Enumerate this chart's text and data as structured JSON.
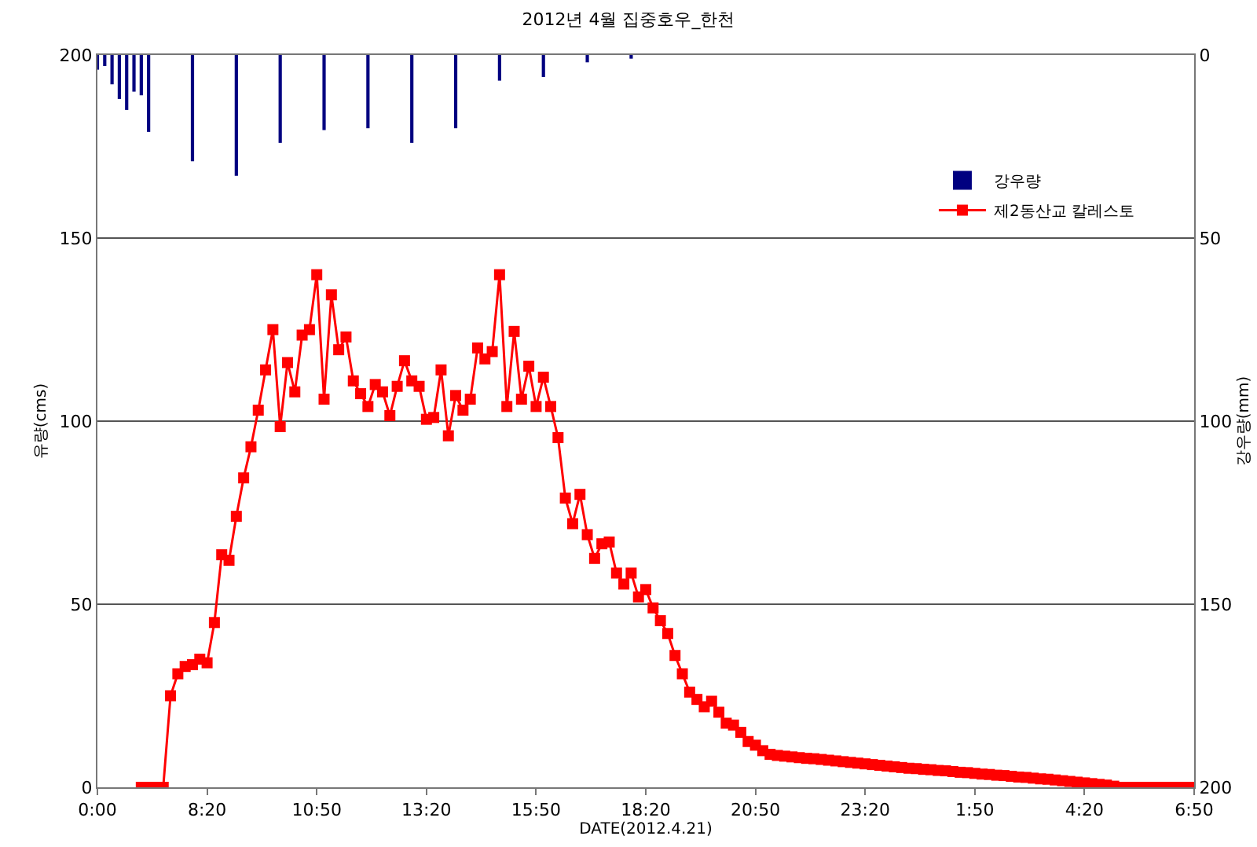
{
  "chart_data": {
    "type": "line",
    "title": "2012년 4월 집중호우_한천",
    "xlabel": "DATE(2012.4.21)",
    "ylabel": "유량(cms)",
    "y2label": "강우량(mm)",
    "xlim": [
      "2012-04-21T05:50",
      "2012-04-22T06:50"
    ],
    "xticks": [
      {
        "value": "2012-04-21T05:50",
        "label": "0:00"
      },
      {
        "value": "2012-04-21T08:20",
        "label": "8:20"
      },
      {
        "value": "2012-04-21T10:50",
        "label": "10:50"
      },
      {
        "value": "2012-04-21T13:20",
        "label": "13:20"
      },
      {
        "value": "2012-04-21T15:50",
        "label": "15:50"
      },
      {
        "value": "2012-04-21T18:20",
        "label": "18:20"
      },
      {
        "value": "2012-04-21T20:50",
        "label": "20:50"
      },
      {
        "value": "2012-04-21T23:20",
        "label": "23:20"
      },
      {
        "value": "2012-04-22T01:50",
        "label": "1:50"
      },
      {
        "value": "2012-04-22T04:20",
        "label": "4:20"
      },
      {
        "value": "2012-04-22T06:50",
        "label": "6:50"
      }
    ],
    "ylim": [
      0,
      200
    ],
    "yticks": [
      0,
      50,
      100,
      150,
      200
    ],
    "y2lim": [
      200,
      0
    ],
    "y2ticks": [
      0,
      50,
      100,
      150,
      200
    ],
    "grid": "y",
    "legend": "top right",
    "marker": "square",
    "line_style": "solid",
    "series": [
      {
        "name": "강우량",
        "type": "bar",
        "axis": "y2",
        "color": "#000080",
        "x": [
          "2012-04-21T05:50",
          "2012-04-21T06:00",
          "2012-04-21T06:10",
          "2012-04-21T06:20",
          "2012-04-21T06:30",
          "2012-04-21T06:40",
          "2012-04-21T06:50",
          "2012-04-21T07:00",
          "2012-04-21T08:00",
          "2012-04-21T09:00",
          "2012-04-21T10:00",
          "2012-04-21T11:00",
          "2012-04-21T12:00",
          "2012-04-21T13:00",
          "2012-04-21T14:00",
          "2012-04-21T15:00",
          "2012-04-21T16:00",
          "2012-04-21T17:00",
          "2012-04-21T18:00"
        ],
        "values": [
          4,
          3,
          8,
          12,
          15,
          10,
          11,
          21,
          29,
          33,
          24,
          20.5,
          20,
          24,
          20,
          7,
          6,
          2,
          1
        ]
      },
      {
        "name": "제2동산교 칼레스토",
        "color": "#ff0000",
        "x": [
          "2012-04-21T06:50",
          "2012-04-21T07:00",
          "2012-04-21T07:10",
          "2012-04-21T07:20",
          "2012-04-21T07:30",
          "2012-04-21T07:40",
          "2012-04-21T07:50",
          "2012-04-21T08:00",
          "2012-04-21T08:10",
          "2012-04-21T08:20",
          "2012-04-21T08:30",
          "2012-04-21T08:40",
          "2012-04-21T08:50",
          "2012-04-21T09:00",
          "2012-04-21T09:10",
          "2012-04-21T09:20",
          "2012-04-21T09:30",
          "2012-04-21T09:40",
          "2012-04-21T09:50",
          "2012-04-21T10:00",
          "2012-04-21T10:10",
          "2012-04-21T10:20",
          "2012-04-21T10:30",
          "2012-04-21T10:40",
          "2012-04-21T10:50",
          "2012-04-21T11:00",
          "2012-04-21T11:10",
          "2012-04-21T11:20",
          "2012-04-21T11:30",
          "2012-04-21T11:40",
          "2012-04-21T11:50",
          "2012-04-21T12:00",
          "2012-04-21T12:10",
          "2012-04-21T12:20",
          "2012-04-21T12:30",
          "2012-04-21T12:40",
          "2012-04-21T12:50",
          "2012-04-21T13:00",
          "2012-04-21T13:10",
          "2012-04-21T13:20",
          "2012-04-21T13:30",
          "2012-04-21T13:40",
          "2012-04-21T13:50",
          "2012-04-21T14:00",
          "2012-04-21T14:10",
          "2012-04-21T14:20",
          "2012-04-21T14:30",
          "2012-04-21T14:40",
          "2012-04-21T14:50",
          "2012-04-21T15:00",
          "2012-04-21T15:10",
          "2012-04-21T15:20",
          "2012-04-21T15:30",
          "2012-04-21T15:40",
          "2012-04-21T15:50",
          "2012-04-21T16:00",
          "2012-04-21T16:10",
          "2012-04-21T16:20",
          "2012-04-21T16:30",
          "2012-04-21T16:40",
          "2012-04-21T16:50",
          "2012-04-21T17:00",
          "2012-04-21T17:10",
          "2012-04-21T17:20",
          "2012-04-21T17:30",
          "2012-04-21T17:40",
          "2012-04-21T17:50",
          "2012-04-21T18:00",
          "2012-04-21T18:10",
          "2012-04-21T18:20",
          "2012-04-21T18:30",
          "2012-04-21T18:40",
          "2012-04-21T18:50",
          "2012-04-21T19:00",
          "2012-04-21T19:10",
          "2012-04-21T19:20",
          "2012-04-21T19:30",
          "2012-04-21T19:40",
          "2012-04-21T19:50",
          "2012-04-21T20:00",
          "2012-04-21T20:10",
          "2012-04-21T20:20",
          "2012-04-21T20:30",
          "2012-04-21T20:40",
          "2012-04-21T20:50",
          "2012-04-21T21:00",
          "2012-04-21T21:10",
          "2012-04-21T21:20",
          "2012-04-21T21:30",
          "2012-04-21T21:40",
          "2012-04-21T21:50",
          "2012-04-21T22:00",
          "2012-04-21T22:10",
          "2012-04-21T22:20",
          "2012-04-21T22:30",
          "2012-04-21T22:40",
          "2012-04-21T22:50",
          "2012-04-21T23:00",
          "2012-04-21T23:10",
          "2012-04-21T23:20",
          "2012-04-21T23:30",
          "2012-04-21T23:40",
          "2012-04-21T23:50",
          "2012-04-22T00:00",
          "2012-04-22T00:10",
          "2012-04-22T00:20",
          "2012-04-22T00:30",
          "2012-04-22T00:40",
          "2012-04-22T00:50",
          "2012-04-22T01:00",
          "2012-04-22T01:10",
          "2012-04-22T01:20",
          "2012-04-22T01:30",
          "2012-04-22T01:40",
          "2012-04-22T01:50",
          "2012-04-22T02:00",
          "2012-04-22T02:10",
          "2012-04-22T02:20",
          "2012-04-22T02:30",
          "2012-04-22T02:40",
          "2012-04-22T02:50",
          "2012-04-22T03:00",
          "2012-04-22T03:10",
          "2012-04-22T03:20",
          "2012-04-22T03:30",
          "2012-04-22T03:40",
          "2012-04-22T03:50",
          "2012-04-22T04:00",
          "2012-04-22T04:10",
          "2012-04-22T04:20",
          "2012-04-22T04:30",
          "2012-04-22T04:40",
          "2012-04-22T04:50",
          "2012-04-22T05:00",
          "2012-04-22T05:10",
          "2012-04-22T05:20",
          "2012-04-22T05:30",
          "2012-04-22T05:40",
          "2012-04-22T05:50",
          "2012-04-22T06:00",
          "2012-04-22T06:10",
          "2012-04-22T06:20",
          "2012-04-22T06:30",
          "2012-04-22T06:40",
          "2012-04-22T06:50"
        ],
        "values": [
          0,
          0,
          0,
          0,
          25,
          31,
          33,
          33.5,
          35,
          34,
          45,
          63.5,
          62,
          74,
          84.5,
          93,
          103,
          114,
          125,
          98.5,
          116,
          108,
          123.5,
          125,
          140,
          106,
          134.5,
          119.5,
          123,
          111,
          107.5,
          104,
          110,
          108,
          101.5,
          109.5,
          116.5,
          111,
          109.5,
          100.5,
          101,
          114,
          96,
          107,
          103,
          106,
          120,
          117,
          119,
          140,
          104,
          124.5,
          106,
          115,
          104,
          112,
          104,
          95.5,
          79,
          72,
          80,
          69,
          62.5,
          66.5,
          67,
          58.5,
          55.5,
          58.5,
          52,
          54,
          49,
          45.5,
          42,
          36,
          31,
          26,
          24,
          22,
          23.5,
          20.5,
          17.5,
          17,
          15,
          12.5,
          11.5,
          10,
          9,
          8.7,
          8.5,
          8.3,
          8.1,
          7.9,
          7.8,
          7.6,
          7.4,
          7.2,
          7,
          6.8,
          6.6,
          6.4,
          6.2,
          6,
          5.8,
          5.6,
          5.4,
          5.2,
          5.1,
          4.9,
          4.8,
          4.6,
          4.5,
          4.3,
          4.1,
          4,
          3.8,
          3.6,
          3.5,
          3.3,
          3.2,
          3,
          2.8,
          2.7,
          2.5,
          2.3,
          2.2,
          2,
          1.8,
          1.6,
          1.4,
          1.2,
          1,
          0.8,
          0.6,
          0.3,
          0,
          0,
          0,
          0,
          0,
          0,
          0,
          0,
          0,
          0,
          0
        ]
      }
    ]
  }
}
